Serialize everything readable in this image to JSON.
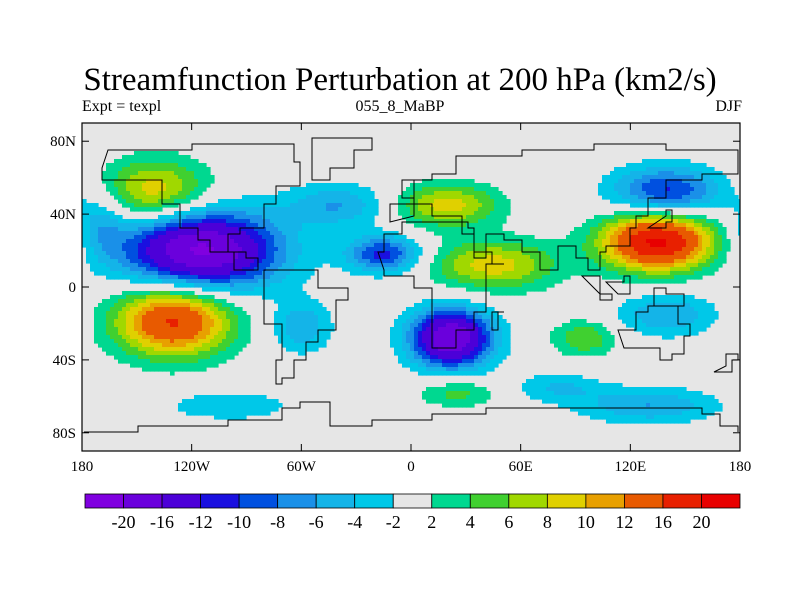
{
  "title": "Streamfunction Perturbation at 200 hPa (km2/s)",
  "subtitle_left": "Expt = texpl",
  "subtitle_center": "055_8_MaBP",
  "subtitle_right": "DJF",
  "colors": {
    "background_fill": "#e6e6e6",
    "coast": "#000000",
    "frame": "#000000"
  },
  "map": {
    "projection": "cylindrical-equidistant",
    "lon_range": [
      -180,
      180
    ],
    "lat_range": [
      -90,
      90
    ],
    "x_ticks": [
      {
        "lon": -180,
        "label": "180"
      },
      {
        "lon": -120,
        "label": "120W"
      },
      {
        "lon": -60,
        "label": "60W"
      },
      {
        "lon": 0,
        "label": "0"
      },
      {
        "lon": 60,
        "label": "60E"
      },
      {
        "lon": 120,
        "label": "120E"
      },
      {
        "lon": 180,
        "label": "180"
      }
    ],
    "y_ticks": [
      {
        "lat": 80,
        "label": "80N"
      },
      {
        "lat": 40,
        "label": "40N"
      },
      {
        "lat": 0,
        "label": "0"
      },
      {
        "lat": -40,
        "label": "40S"
      },
      {
        "lat": -80,
        "label": "80S"
      }
    ],
    "anomalies": [
      {
        "lon": -140,
        "lat": 52,
        "amp": 10,
        "rx": 30,
        "ry": 18
      },
      {
        "lon": -115,
        "lat": 20,
        "amp": -21,
        "rx": 42,
        "ry": 22
      },
      {
        "lon": -130,
        "lat": -18,
        "amp": 17,
        "rx": 32,
        "ry": 20
      },
      {
        "lon": -60,
        "lat": -22,
        "amp": -6,
        "rx": 16,
        "ry": 14
      },
      {
        "lon": -40,
        "lat": 45,
        "amp": -6,
        "rx": 28,
        "ry": 12
      },
      {
        "lon": -15,
        "lat": 18,
        "amp": -11,
        "rx": 20,
        "ry": 10
      },
      {
        "lon": 20,
        "lat": 45,
        "amp": 9,
        "rx": 28,
        "ry": 12
      },
      {
        "lon": 22,
        "lat": -28,
        "amp": -20,
        "rx": 22,
        "ry": 16
      },
      {
        "lon": 45,
        "lat": 12,
        "amp": 9,
        "rx": 35,
        "ry": 14
      },
      {
        "lon": 25,
        "lat": -58,
        "amp": 5,
        "rx": 22,
        "ry": 8
      },
      {
        "lon": 95,
        "lat": -28,
        "amp": 6,
        "rx": 18,
        "ry": 10
      },
      {
        "lon": 135,
        "lat": 25,
        "amp": 21,
        "rx": 30,
        "ry": 16
      },
      {
        "lon": 140,
        "lat": 52,
        "amp": -11,
        "rx": 30,
        "ry": 14
      },
      {
        "lon": 140,
        "lat": -15,
        "amp": -6,
        "rx": 28,
        "ry": 12
      },
      {
        "lon": 130,
        "lat": -65,
        "amp": -6,
        "rx": 38,
        "ry": 10
      },
      {
        "lon": -100,
        "lat": -65,
        "amp": -4,
        "rx": 35,
        "ry": 8
      },
      {
        "lon": -170,
        "lat": 35,
        "amp": -5,
        "rx": 14,
        "ry": 18
      },
      {
        "lon": 80,
        "lat": -55,
        "amp": -4,
        "rx": 25,
        "ry": 8
      }
    ]
  },
  "colorbar": {
    "levels": [
      "-20",
      "-16",
      "-12",
      "-10",
      "-8",
      "-6",
      "-4",
      "-2",
      "2",
      "4",
      "6",
      "8",
      "10",
      "12",
      "16",
      "20"
    ],
    "level_values": [
      -20,
      -16,
      -12,
      -10,
      -8,
      -6,
      -4,
      -2,
      2,
      4,
      6,
      8,
      10,
      12,
      16,
      20
    ],
    "colors": [
      "#8000e0",
      "#6a00dc",
      "#4c00d8",
      "#1a10e0",
      "#0050e0",
      "#1a90e8",
      "#14b4e8",
      "#00c8e8",
      "#e6e6e6",
      "#00d890",
      "#40d030",
      "#a0d800",
      "#e0d000",
      "#e8a000",
      "#e85a00",
      "#e82000",
      "#e80000"
    ]
  }
}
